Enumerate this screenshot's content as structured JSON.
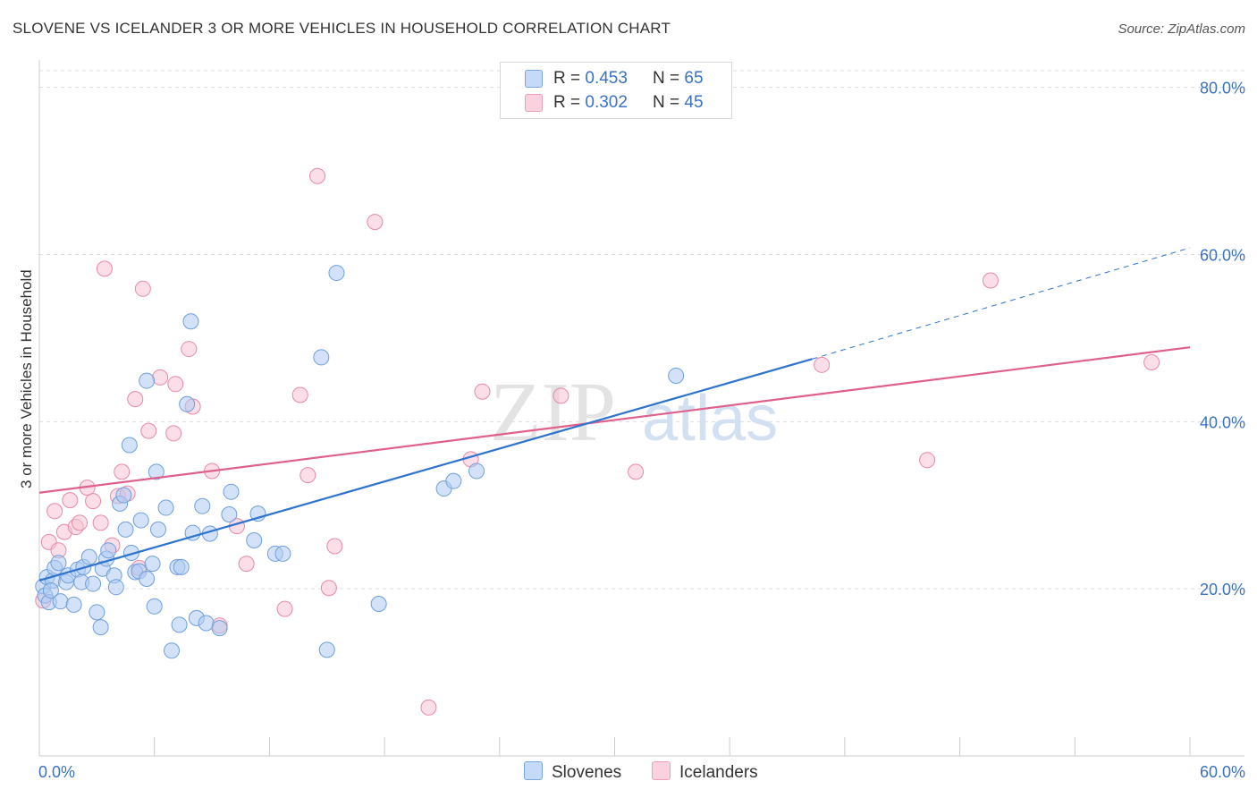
{
  "title": "SLOVENE VS ICELANDER 3 OR MORE VEHICLES IN HOUSEHOLD CORRELATION CHART",
  "source": "Source: ZipAtlas.com",
  "watermark": {
    "zip": "ZIP",
    "atlas": "atlas"
  },
  "legend": {
    "rows": [
      {
        "r_label": "R = ",
        "r_value": "0.453",
        "n_label": "N = ",
        "n_value": "65",
        "color": "#aecbf2"
      },
      {
        "r_label": "R = ",
        "r_value": "0.302",
        "n_label": "N = ",
        "n_value": "45",
        "color": "#f7bcd0"
      }
    ]
  },
  "bottom_legend": {
    "slovenes": "Slovenes",
    "icelanders": "Icelanders"
  },
  "colors": {
    "blue_fill": "#aecbf2",
    "blue_stroke": "#6f9fdc",
    "blue_line": "#2f74cc",
    "pink_fill": "#f7c3d3",
    "pink_stroke": "#e68aa8",
    "pink_line": "#e0608d",
    "tick_label": "#3a72c4",
    "grid": "#dddddd"
  },
  "chart_data": {
    "type": "scatter",
    "title": "SLOVENE VS ICELANDER 3 OR MORE VEHICLES IN HOUSEHOLD CORRELATION CHART",
    "xlabel": "",
    "ylabel": "3 or more Vehicles in Household",
    "xlim": [
      0,
      60
    ],
    "ylim": [
      0,
      82
    ],
    "x_tick_labels": [
      "0.0%",
      "60.0%"
    ],
    "y_ticks": [
      20,
      40,
      60,
      80
    ],
    "y_tick_labels": [
      "20.0%",
      "40.0%",
      "60.0%",
      "80.0%"
    ],
    "grid": true,
    "series": [
      {
        "name": "Slovenes",
        "points": [
          [
            0.2,
            20.3
          ],
          [
            0.3,
            19.2
          ],
          [
            0.4,
            21.4
          ],
          [
            0.5,
            18.4
          ],
          [
            0.7,
            21.0
          ],
          [
            0.8,
            22.5
          ],
          [
            1.0,
            23.1
          ],
          [
            1.1,
            18.5
          ],
          [
            1.4,
            20.8
          ],
          [
            1.5,
            21.6
          ],
          [
            1.8,
            18.1
          ],
          [
            2.0,
            22.3
          ],
          [
            2.2,
            20.8
          ],
          [
            2.3,
            22.6
          ],
          [
            2.6,
            23.8
          ],
          [
            2.8,
            20.6
          ],
          [
            3.0,
            17.2
          ],
          [
            3.2,
            15.4
          ],
          [
            3.3,
            22.4
          ],
          [
            3.5,
            23.6
          ],
          [
            3.6,
            24.6
          ],
          [
            3.9,
            21.6
          ],
          [
            4.0,
            20.2
          ],
          [
            4.2,
            30.2
          ],
          [
            4.4,
            31.2
          ],
          [
            4.5,
            27.1
          ],
          [
            4.7,
            37.2
          ],
          [
            4.8,
            24.3
          ],
          [
            5.0,
            22.0
          ],
          [
            5.2,
            22.1
          ],
          [
            5.3,
            28.2
          ],
          [
            5.6,
            21.2
          ],
          [
            5.6,
            44.9
          ],
          [
            5.9,
            23.0
          ],
          [
            6.0,
            17.9
          ],
          [
            6.1,
            34.0
          ],
          [
            6.2,
            27.1
          ],
          [
            6.6,
            29.7
          ],
          [
            6.9,
            12.6
          ],
          [
            7.2,
            22.6
          ],
          [
            7.3,
            15.7
          ],
          [
            7.4,
            22.6
          ],
          [
            7.7,
            42.1
          ],
          [
            7.9,
            52.0
          ],
          [
            8.0,
            26.7
          ],
          [
            8.2,
            16.5
          ],
          [
            8.5,
            29.9
          ],
          [
            8.7,
            15.9
          ],
          [
            8.9,
            26.6
          ],
          [
            9.4,
            15.3
          ],
          [
            9.9,
            28.9
          ],
          [
            10.0,
            31.6
          ],
          [
            11.2,
            25.8
          ],
          [
            11.4,
            29.0
          ],
          [
            12.3,
            24.2
          ],
          [
            12.7,
            24.2
          ],
          [
            14.7,
            47.7
          ],
          [
            15.0,
            12.7
          ],
          [
            15.5,
            57.8
          ],
          [
            17.7,
            18.2
          ],
          [
            21.1,
            32.0
          ],
          [
            21.6,
            32.9
          ],
          [
            22.8,
            34.1
          ],
          [
            33.2,
            45.5
          ],
          [
            0.6,
            19.8
          ]
        ]
      },
      {
        "name": "Icelanders",
        "points": [
          [
            0.2,
            18.6
          ],
          [
            0.5,
            25.6
          ],
          [
            0.8,
            29.3
          ],
          [
            1.0,
            24.6
          ],
          [
            1.3,
            26.8
          ],
          [
            1.6,
            30.6
          ],
          [
            1.9,
            27.4
          ],
          [
            2.1,
            27.9
          ],
          [
            2.5,
            32.1
          ],
          [
            2.8,
            30.5
          ],
          [
            3.2,
            27.9
          ],
          [
            3.4,
            58.3
          ],
          [
            3.8,
            25.2
          ],
          [
            4.1,
            31.1
          ],
          [
            4.3,
            34.0
          ],
          [
            4.6,
            31.4
          ],
          [
            5.0,
            42.7
          ],
          [
            5.2,
            22.5
          ],
          [
            5.4,
            55.9
          ],
          [
            5.7,
            38.9
          ],
          [
            6.3,
            45.3
          ],
          [
            7.0,
            38.6
          ],
          [
            7.1,
            44.5
          ],
          [
            7.8,
            48.7
          ],
          [
            8.0,
            41.8
          ],
          [
            9.0,
            34.1
          ],
          [
            9.4,
            15.6
          ],
          [
            10.3,
            27.5
          ],
          [
            10.8,
            23.0
          ],
          [
            12.8,
            17.6
          ],
          [
            13.6,
            43.2
          ],
          [
            14.0,
            33.6
          ],
          [
            14.5,
            69.4
          ],
          [
            15.1,
            20.1
          ],
          [
            15.4,
            25.1
          ],
          [
            17.5,
            63.9
          ],
          [
            20.3,
            5.8
          ],
          [
            22.5,
            35.5
          ],
          [
            23.1,
            43.6
          ],
          [
            27.2,
            43.1
          ],
          [
            31.1,
            34.0
          ],
          [
            40.8,
            46.8
          ],
          [
            46.3,
            35.4
          ],
          [
            49.6,
            56.9
          ],
          [
            58.0,
            47.1
          ]
        ]
      }
    ],
    "trend_lines": [
      {
        "series": "Slovenes",
        "x_start": 0,
        "y_start": 21.0,
        "x_end": 40.3,
        "y_end": 47.5,
        "dashed_to_x": 60,
        "dashed_to_y": 60.8
      },
      {
        "series": "Icelanders",
        "x_start": 0,
        "y_start": 31.5,
        "x_end": 60,
        "y_end": 48.9
      }
    ]
  }
}
